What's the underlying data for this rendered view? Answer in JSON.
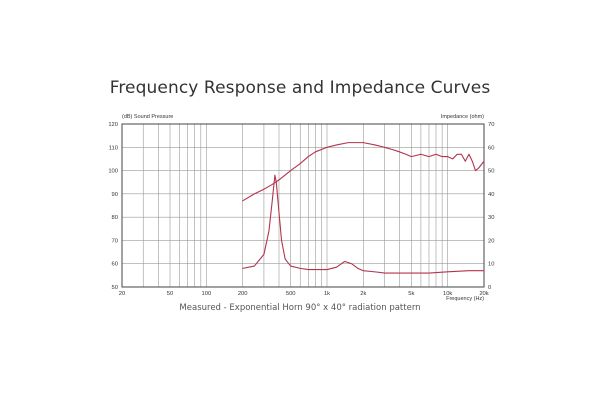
{
  "title": "Frequency Response and Impedance Curves",
  "caption": "Measured - Exponential Horn 90° x 40° radiation pattern",
  "chart_data": {
    "type": "line",
    "x_scale": "log",
    "xlim": [
      20,
      20000
    ],
    "left_axis": {
      "label": "(dB) Sound Pressure",
      "lim": [
        50,
        120
      ],
      "ticks": [
        "50",
        "60",
        "70",
        "80",
        "90",
        "100",
        "110",
        "120"
      ]
    },
    "right_axis": {
      "label": "Impedance (ohm)",
      "lim": [
        0,
        70
      ],
      "ticks": [
        "0",
        "10",
        "20",
        "30",
        "40",
        "50",
        "60",
        "70"
      ]
    },
    "x_axis": {
      "label": "Frequency (Hz)"
    },
    "x_tick_labels": [
      {
        "v": 20,
        "t": "20"
      },
      {
        "v": 50,
        "t": "50"
      },
      {
        "v": 100,
        "t": "100"
      },
      {
        "v": 200,
        "t": "200"
      },
      {
        "v": 500,
        "t": "500"
      },
      {
        "v": 1000,
        "t": "1k"
      },
      {
        "v": 2000,
        "t": "2k"
      },
      {
        "v": 5000,
        "t": "5k"
      },
      {
        "v": 10000,
        "t": "10k"
      },
      {
        "v": 20000,
        "t": "20k"
      }
    ],
    "grid": true,
    "line_color": "#b3334f",
    "series": [
      {
        "axis": "left",
        "x": [
          200,
          250,
          300,
          350,
          400,
          500,
          600,
          700,
          800,
          1000,
          1200,
          1500,
          1800,
          2000,
          2500,
          3000,
          3500,
          4000,
          4500,
          5000,
          6000,
          7000,
          8000,
          9000,
          10000,
          11000,
          12000,
          13000,
          14000,
          15000,
          16000,
          17000,
          18000,
          20000
        ],
        "y": [
          87,
          90,
          92,
          94,
          96,
          100,
          103,
          106,
          108,
          110,
          111,
          112,
          112,
          112,
          111,
          110,
          109,
          108,
          107,
          106,
          107,
          106,
          107,
          106,
          106,
          105,
          107,
          107,
          104,
          107,
          104,
          100,
          101,
          104
        ]
      },
      {
        "axis": "right",
        "x": [
          200,
          250,
          300,
          330,
          350,
          370,
          380,
          400,
          420,
          450,
          500,
          600,
          700,
          800,
          1000,
          1200,
          1400,
          1600,
          1800,
          2000,
          2500,
          3000,
          4000,
          5000,
          7000,
          10000,
          15000,
          20000
        ],
        "y": [
          8,
          9,
          14,
          24,
          36,
          48,
          45,
          32,
          20,
          12,
          9,
          8,
          7.5,
          7.5,
          7.5,
          8.5,
          11,
          10,
          8,
          7,
          6.5,
          6,
          6,
          6,
          6,
          6.5,
          7,
          7
        ]
      }
    ]
  }
}
